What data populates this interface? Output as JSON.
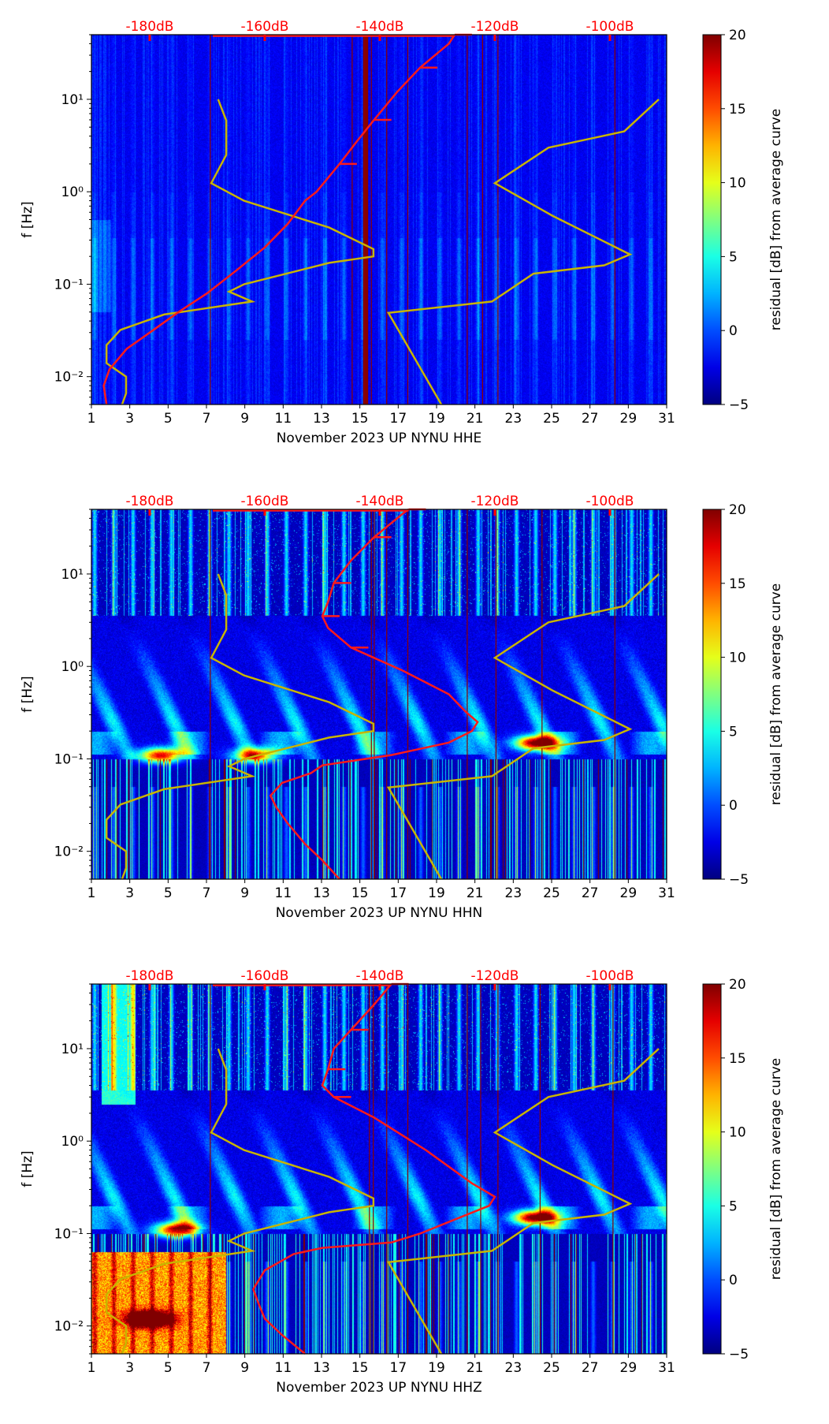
{
  "chart_data": [
    {
      "type": "heatmap",
      "title": "",
      "xlabel": "November 2023 UP NYNU  HHE",
      "ylabel": "f [Hz]",
      "xlim": [
        1,
        31
      ],
      "ylim": [
        0.005,
        50
      ],
      "yscale": "log",
      "xticks": [
        1,
        3,
        5,
        7,
        9,
        11,
        13,
        15,
        17,
        19,
        21,
        23,
        25,
        27,
        29,
        31
      ],
      "yticks": [
        {
          "value": 0.01,
          "label": "10⁻²"
        },
        {
          "value": 0.1,
          "label": "10⁻¹"
        },
        {
          "value": 1,
          "label": "10⁰"
        },
        {
          "value": 10,
          "label": "10¹"
        }
      ],
      "top_axis": {
        "label_color": "#ff0000",
        "ticks": [
          -180,
          -160,
          -140,
          -120,
          -100
        ],
        "tick_labels": [
          "-180dB",
          "-160dB",
          "-140dB",
          "-120dB",
          "-100dB"
        ]
      },
      "colorbar": {
        "label": "residual [dB] from average curve",
        "range": [
          -5,
          20
        ],
        "ticks": [
          -5,
          0,
          5,
          10,
          15,
          20
        ],
        "tick_labels": [
          "−5",
          "0",
          "5",
          "10",
          "15",
          "20"
        ],
        "colormap": "jet"
      },
      "activity": "low",
      "red_curve_name": "average PSD curve",
      "red_curve": [
        [
          -187.5,
          0.005
        ],
        [
          -188,
          0.008
        ],
        [
          -187,
          0.012
        ],
        [
          -184,
          0.02
        ],
        [
          -180,
          0.03
        ],
        [
          -175,
          0.05
        ],
        [
          -170,
          0.08
        ],
        [
          -165,
          0.14
        ],
        [
          -160,
          0.25
        ],
        [
          -156,
          0.45
        ],
        [
          -153,
          0.8
        ],
        [
          -151,
          1.0
        ],
        [
          -147,
          2.0
        ],
        [
          -144,
          3.5
        ],
        [
          -141,
          6
        ],
        [
          -137,
          12
        ],
        [
          -133,
          22
        ],
        [
          -128,
          40
        ],
        [
          -127,
          50
        ]
      ],
      "yellow_curve_name": "reference noise model",
      "dark_red_days": [
        7.2,
        14.6,
        15.25,
        15.35,
        15.6,
        16.4,
        17.5,
        20.6,
        21.4,
        22.2,
        28.3
      ]
    },
    {
      "type": "heatmap",
      "title": "",
      "xlabel": "November 2023 UP NYNU  HHN",
      "ylabel": "f [Hz]",
      "xlim": [
        1,
        31
      ],
      "ylim": [
        0.005,
        50
      ],
      "yscale": "log",
      "xticks": [
        1,
        3,
        5,
        7,
        9,
        11,
        13,
        15,
        17,
        19,
        21,
        23,
        25,
        27,
        29,
        31
      ],
      "yticks": [
        {
          "value": 0.01,
          "label": "10⁻²"
        },
        {
          "value": 0.1,
          "label": "10⁻¹"
        },
        {
          "value": 1,
          "label": "10⁰"
        },
        {
          "value": 10,
          "label": "10¹"
        }
      ],
      "top_axis": {
        "label_color": "#ff0000",
        "ticks": [
          -180,
          -160,
          -140,
          -120,
          -100
        ],
        "tick_labels": [
          "-180dB",
          "-160dB",
          "-140dB",
          "-120dB",
          "-100dB"
        ]
      },
      "colorbar": {
        "label": "residual [dB] from average curve",
        "range": [
          -5,
          20
        ],
        "ticks": [
          -5,
          0,
          5,
          10,
          15,
          20
        ],
        "tick_labels": [
          "−5",
          "0",
          "5",
          "10",
          "15",
          "20"
        ],
        "colormap": "jet"
      },
      "activity": "high",
      "red_curve_name": "average PSD curve",
      "red_curve": [
        [
          -147,
          0.005
        ],
        [
          -150,
          0.008
        ],
        [
          -153,
          0.012
        ],
        [
          -156,
          0.02
        ],
        [
          -158,
          0.03
        ],
        [
          -159,
          0.04
        ],
        [
          -157,
          0.055
        ],
        [
          -152,
          0.07
        ],
        [
          -150,
          0.085
        ],
        [
          -138,
          0.11
        ],
        [
          -128,
          0.15
        ],
        [
          -124,
          0.2
        ],
        [
          -123,
          0.25
        ],
        [
          -125,
          0.32
        ],
        [
          -128,
          0.5
        ],
        [
          -136,
          0.9
        ],
        [
          -145,
          1.6
        ],
        [
          -149,
          2.6
        ],
        [
          -150,
          3.5
        ],
        [
          -149,
          5
        ],
        [
          -148,
          8
        ],
        [
          -145,
          14
        ],
        [
          -141,
          25
        ],
        [
          -136,
          45
        ],
        [
          -135,
          50
        ]
      ],
      "hotspots": [
        {
          "day": 24.2,
          "f": 0.15,
          "dB": 20
        },
        {
          "day": 4.6,
          "f": 0.11,
          "dB": 16
        },
        {
          "day": 9.5,
          "f": 0.11,
          "dB": 14
        }
      ],
      "dark_red_days": [
        7.2,
        15.6,
        15.75,
        16.4,
        17.5,
        20.6,
        22.1,
        24.5,
        28.3
      ]
    },
    {
      "type": "heatmap",
      "title": "",
      "xlabel": "November 2023 UP NYNU  HHZ",
      "ylabel": "f [Hz]",
      "xlim": [
        1,
        31
      ],
      "ylim": [
        0.005,
        50
      ],
      "yscale": "log",
      "xticks": [
        1,
        3,
        5,
        7,
        9,
        11,
        13,
        15,
        17,
        19,
        21,
        23,
        25,
        27,
        29,
        31
      ],
      "yticks": [
        {
          "value": 0.01,
          "label": "10⁻²"
        },
        {
          "value": 0.1,
          "label": "10⁻¹"
        },
        {
          "value": 1,
          "label": "10⁰"
        },
        {
          "value": 10,
          "label": "10¹"
        }
      ],
      "top_axis": {
        "label_color": "#ff0000",
        "ticks": [
          -180,
          -160,
          -140,
          -120,
          -100
        ],
        "tick_labels": [
          "-180dB",
          "-160dB",
          "-140dB",
          "-120dB",
          "-100dB"
        ]
      },
      "colorbar": {
        "label": "residual [dB] from average curve",
        "range": [
          -5,
          20
        ],
        "ticks": [
          -5,
          0,
          5,
          10,
          15,
          20
        ],
        "tick_labels": [
          "−5",
          "0",
          "5",
          "10",
          "15",
          "20"
        ],
        "colormap": "jet"
      },
      "activity": "very-high",
      "red_curve_name": "average PSD curve",
      "red_curve": [
        [
          -153,
          0.005
        ],
        [
          -157,
          0.008
        ],
        [
          -160,
          0.012
        ],
        [
          -161,
          0.017
        ],
        [
          -162,
          0.025
        ],
        [
          -160,
          0.04
        ],
        [
          -155,
          0.06
        ],
        [
          -150,
          0.07
        ],
        [
          -138,
          0.08
        ],
        [
          -133,
          0.1
        ],
        [
          -126,
          0.15
        ],
        [
          -121,
          0.2
        ],
        [
          -120,
          0.25
        ],
        [
          -124,
          0.35
        ],
        [
          -132,
          0.8
        ],
        [
          -141,
          1.8
        ],
        [
          -148,
          3
        ],
        [
          -150,
          4
        ],
        [
          -149,
          6
        ],
        [
          -148,
          10
        ],
        [
          -145,
          16
        ],
        [
          -141,
          30
        ],
        [
          -138,
          50
        ]
      ],
      "hotspots": [
        {
          "day": 24.1,
          "f": 0.15,
          "dB": 20
        },
        {
          "day": 4,
          "f": 0.012,
          "dB": 20
        },
        {
          "day": 5.4,
          "f": 0.11,
          "dB": 17
        }
      ],
      "dark_red_days": [
        7.2,
        15.5,
        15.7,
        16.4,
        17.5,
        20.6,
        21.3,
        22.2,
        24.4,
        28.2
      ]
    }
  ],
  "reference_curve": [
    [
      -168.1,
      10
    ],
    [
      -166.7,
      5.9
    ],
    [
      -166.7,
      2.5
    ],
    [
      -169.3,
      1.24
    ],
    [
      -163.6,
      0.8
    ],
    [
      -148.8,
      0.41
    ],
    [
      -141.1,
      0.24
    ],
    [
      -141.1,
      0.2
    ],
    [
      -148.8,
      0.17
    ],
    [
      -163.6,
      0.1
    ],
    [
      -166.2,
      0.083
    ],
    [
      -162.2,
      0.065
    ],
    [
      -177.5,
      0.047
    ],
    [
      -185.1,
      0.032
    ],
    [
      -187.5,
      0.022
    ],
    [
      -187.5,
      0.014
    ],
    [
      -184.1,
      0.01
    ],
    [
      -184.1,
      0.0066
    ],
    [
      -184.8,
      0.005
    ]
  ],
  "reference_curve_2": [
    [
      -91.5,
      10
    ],
    [
      -97.5,
      4.5
    ],
    [
      -110.7,
      3.0
    ],
    [
      -120,
      1.24
    ],
    [
      -110,
      0.55
    ],
    [
      -96.5,
      0.21
    ],
    [
      -101,
      0.16
    ],
    [
      -113.3,
      0.13
    ],
    [
      -120.5,
      0.065
    ],
    [
      -138.5,
      0.049
    ],
    [
      -129.3,
      0.005
    ]
  ]
}
